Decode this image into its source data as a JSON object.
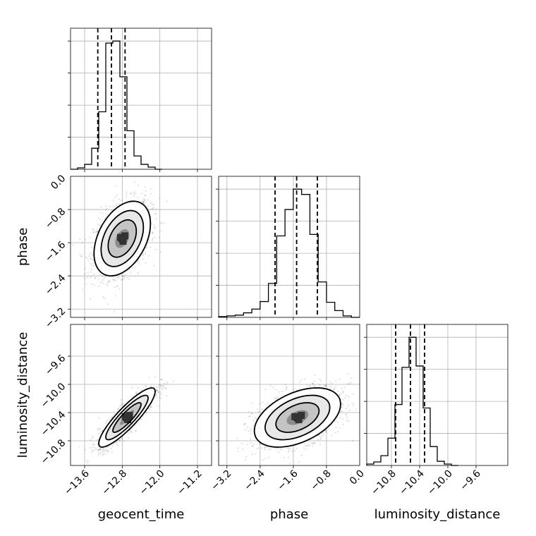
{
  "chart_data": {
    "type": "corner",
    "parameters": [
      "geocent_time",
      "phase",
      "luminosity_distance"
    ],
    "ranges": {
      "geocent_time": [
        -13.9,
        -10.9
      ],
      "phase": [
        -3.4,
        0.0
      ],
      "luminosity_distance": [
        -11.15,
        -9.15
      ]
    },
    "ticks": {
      "geocent_time": [
        -13.6,
        -12.8,
        -12.0,
        -11.2
      ],
      "phase": [
        -3.2,
        -2.4,
        -1.6,
        -0.8,
        0.0
      ],
      "luminosity_distance": [
        -10.8,
        -10.4,
        -10.0,
        -9.6
      ]
    },
    "tick_labels": {
      "geocent_time": [
        "−13.6",
        "−12.8",
        "−12.0",
        "−11.2"
      ],
      "phase": [
        "−3.2",
        "−2.4",
        "−1.6",
        "−0.8",
        "0.0"
      ],
      "luminosity_distance": [
        "−10.8",
        "−10.4",
        "−10.0",
        "−9.6"
      ]
    },
    "quantiles": {
      "geocent_time": [
        -13.32,
        -13.03,
        -12.74
      ],
      "phase": [
        -2.04,
        -1.52,
        -1.02
      ],
      "luminosity_distance": [
        -10.74,
        -10.53,
        -10.33
      ]
    },
    "histograms": {
      "geocent_time": {
        "bin_edges": [
          -13.9,
          -13.75,
          -13.6,
          -13.45,
          -13.3,
          -13.15,
          -13.0,
          -12.85,
          -12.7,
          -12.55,
          -12.4,
          -12.25,
          -12.1,
          -11.95
        ],
        "counts": [
          0,
          2,
          7,
          30,
          82,
          180,
          183,
          132,
          55,
          19,
          7,
          3,
          0
        ]
      },
      "phase": {
        "bin_edges": [
          -3.4,
          -3.2,
          -3.0,
          -2.8,
          -2.6,
          -2.4,
          -2.2,
          -2.0,
          -1.8,
          -1.6,
          -1.4,
          -1.2,
          -1.0,
          -0.8,
          -0.6,
          -0.4,
          -0.2,
          0.0
        ],
        "counts": [
          1,
          2,
          3,
          6,
          11,
          21,
          45,
          108,
          143,
          170,
          163,
          110,
          47,
          20,
          9,
          2,
          0
        ]
      },
      "luminosity_distance": {
        "bin_edges": [
          -11.15,
          -11.05,
          -10.95,
          -10.85,
          -10.75,
          -10.65,
          -10.55,
          -10.45,
          -10.35,
          -10.25,
          -10.15,
          -10.05,
          -9.95,
          -9.85
        ],
        "counts": [
          2,
          5,
          14,
          39,
          87,
          140,
          183,
          142,
          82,
          27,
          6,
          2,
          0
        ]
      }
    },
    "pairs": [
      {
        "x": "geocent_time",
        "y": "phase",
        "center": [
          -12.8,
          -1.5
        ],
        "sx": 0.3,
        "sy": 0.45,
        "rho": 0.4
      },
      {
        "x": "geocent_time",
        "y": "luminosity_distance",
        "center": [
          -12.7,
          -10.47
        ],
        "sx": 0.3,
        "sy": 0.21,
        "rho": 0.88
      },
      {
        "x": "phase",
        "y": "luminosity_distance",
        "center": [
          -1.5,
          -10.47
        ],
        "sx": 0.52,
        "sy": 0.21,
        "rho": 0.45
      }
    ],
    "contour_levels_sigma": [
      0.5,
      1.0,
      1.5,
      2.0
    ],
    "density_peak_cells": [
      [
        0.0,
        0.0
      ],
      [
        0.15,
        0.12
      ],
      [
        -0.1,
        0.05
      ],
      [
        0.05,
        -0.12
      ]
    ]
  }
}
